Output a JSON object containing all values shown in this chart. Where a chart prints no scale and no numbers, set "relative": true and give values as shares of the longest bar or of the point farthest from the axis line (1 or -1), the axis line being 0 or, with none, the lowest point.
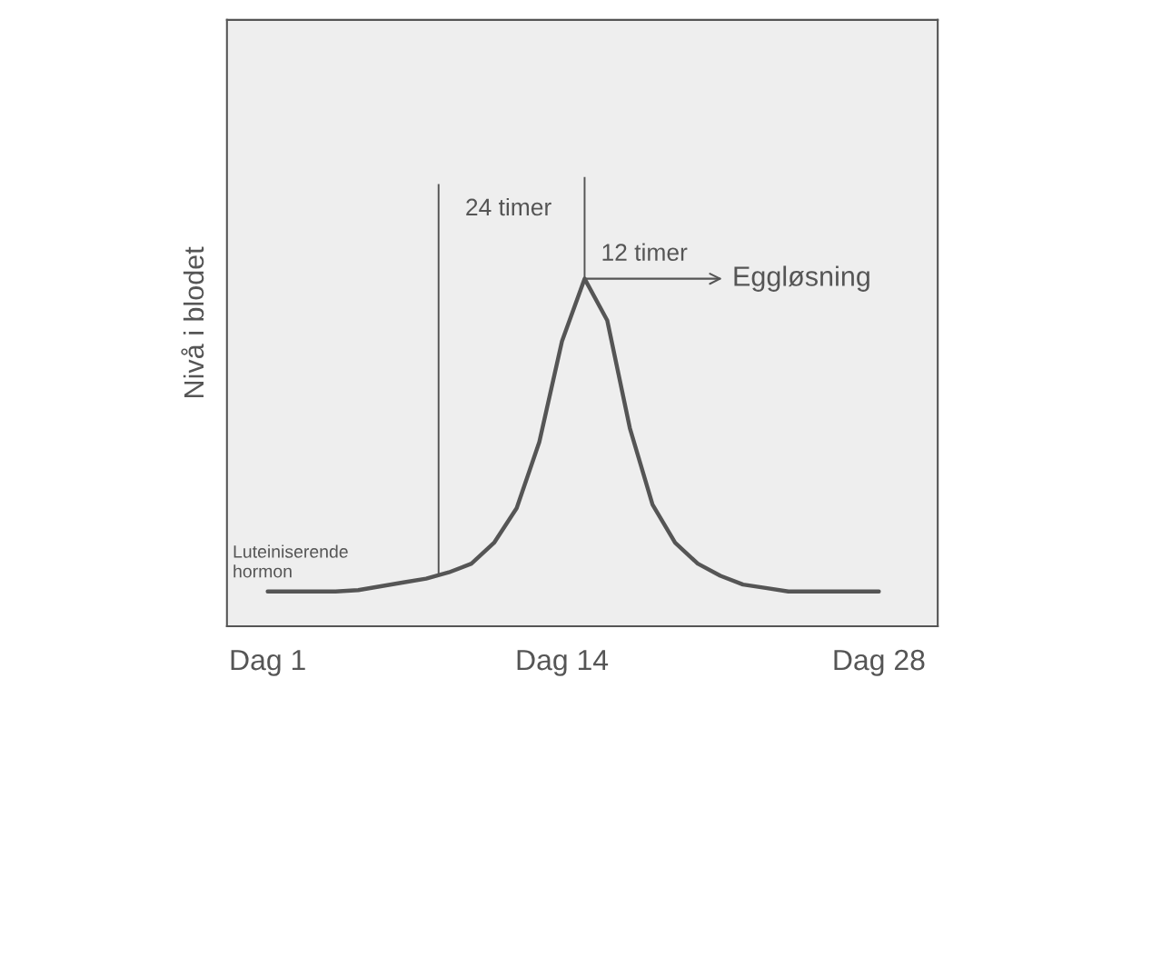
{
  "chart_data": {
    "type": "line",
    "relative": true,
    "ylabel": "Nivå i blodet",
    "categories": [
      "Dag 1",
      null,
      null,
      null,
      null,
      null,
      null,
      null,
      null,
      null,
      null,
      null,
      null,
      "Dag 14",
      null,
      null,
      null,
      null,
      null,
      null,
      null,
      null,
      null,
      null,
      null,
      null,
      null,
      "Dag 28"
    ],
    "series": [
      {
        "name": "Luteiniserende\nhormon",
        "color": "#555555",
        "values": [
          0.1,
          0.1,
          0.1,
          0.1,
          0.104,
          0.115,
          0.126,
          0.137,
          0.155,
          0.18,
          0.24,
          0.34,
          0.53,
          0.82,
          1.0,
          0.88,
          0.57,
          0.35,
          0.24,
          0.18,
          0.145,
          0.12,
          0.11,
          0.1,
          0.1,
          0.1,
          0.1,
          0.1
        ]
      }
    ],
    "annotations": [
      "24 timer",
      "12 timer",
      "Eggløsning"
    ],
    "grid": false,
    "legend": false
  }
}
